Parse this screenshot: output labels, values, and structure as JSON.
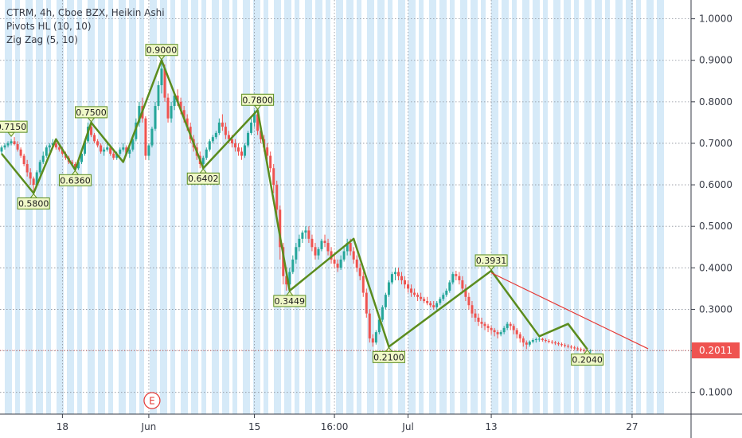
{
  "legend": {
    "main": "CTRM, 4h, Cboe BZX, Heikin Ashi",
    "pivots": "Pivots HL (10, 10)",
    "zigzag": "Zig Zag (5, 10)"
  },
  "colors": {
    "background": "#ffffff",
    "session_shade": "#d6eaf8",
    "up_candle": "#26a69a",
    "down_candle": "#ef5350",
    "zigzag": "#5b8c1e",
    "trendline": "#e53935",
    "pivot_label_bg": "#f0f8c8",
    "pivot_label_border": "#5b8c1e",
    "price_label_bg": "#ef5350",
    "earnings_marker": "#e53935"
  },
  "price_scale": {
    "ticks": [
      "1.0000",
      "0.9000",
      "0.8000",
      "0.7000",
      "0.6000",
      "0.5000",
      "0.4000",
      "0.3000",
      "0.2000",
      "0.1000"
    ],
    "last_price": "0.2011"
  },
  "earnings_marker": {
    "letter": "E",
    "at_time_index": 47
  },
  "chart_data": {
    "type": "candlestick",
    "chart_style": "Heikin Ashi",
    "y_axis": {
      "min": 0.05,
      "max": 1.05,
      "ticks": [
        0.1,
        0.2,
        0.3,
        0.4,
        0.5,
        0.6,
        0.7,
        0.8,
        0.9,
        1.0
      ]
    },
    "x_axis": {
      "tick_labels": [
        {
          "label": "18",
          "index": 19
        },
        {
          "label": "Jun",
          "index": 46
        },
        {
          "label": "15",
          "index": 79
        },
        {
          "label": "16:00",
          "index": 104
        },
        {
          "label": "Jul",
          "index": 127
        },
        {
          "label": "13",
          "index": 153
        },
        {
          "label": "27",
          "index": 197
        }
      ],
      "bar_count": 203
    },
    "candles_ohlc": [
      [
        0.68,
        0.695,
        0.675,
        0.69
      ],
      [
        0.69,
        0.7,
        0.685,
        0.695
      ],
      [
        0.695,
        0.705,
        0.69,
        0.7
      ],
      [
        0.7,
        0.71,
        0.695,
        0.705
      ],
      [
        0.705,
        0.715,
        0.695,
        0.698
      ],
      [
        0.698,
        0.705,
        0.68,
        0.685
      ],
      [
        0.685,
        0.69,
        0.665,
        0.67
      ],
      [
        0.67,
        0.675,
        0.645,
        0.65
      ],
      [
        0.65,
        0.66,
        0.62,
        0.63
      ],
      [
        0.63,
        0.64,
        0.6,
        0.615
      ],
      [
        0.615,
        0.62,
        0.58,
        0.6
      ],
      [
        0.6,
        0.635,
        0.6,
        0.63
      ],
      [
        0.63,
        0.66,
        0.625,
        0.655
      ],
      [
        0.655,
        0.68,
        0.65,
        0.67
      ],
      [
        0.67,
        0.695,
        0.665,
        0.69
      ],
      [
        0.69,
        0.7,
        0.68,
        0.695
      ],
      [
        0.695,
        0.71,
        0.69,
        0.7
      ],
      [
        0.7,
        0.705,
        0.685,
        0.69
      ],
      [
        0.69,
        0.7,
        0.68,
        0.685
      ],
      [
        0.685,
        0.69,
        0.67,
        0.675
      ],
      [
        0.675,
        0.68,
        0.66,
        0.665
      ],
      [
        0.665,
        0.67,
        0.65,
        0.655
      ],
      [
        0.655,
        0.66,
        0.645,
        0.65
      ],
      [
        0.65,
        0.655,
        0.636,
        0.64
      ],
      [
        0.64,
        0.66,
        0.636,
        0.655
      ],
      [
        0.655,
        0.68,
        0.65,
        0.675
      ],
      [
        0.675,
        0.71,
        0.67,
        0.705
      ],
      [
        0.705,
        0.75,
        0.7,
        0.74
      ],
      [
        0.74,
        0.745,
        0.715,
        0.72
      ],
      [
        0.72,
        0.725,
        0.7,
        0.705
      ],
      [
        0.705,
        0.71,
        0.69,
        0.695
      ],
      [
        0.695,
        0.7,
        0.675,
        0.68
      ],
      [
        0.68,
        0.69,
        0.67,
        0.685
      ],
      [
        0.685,
        0.7,
        0.68,
        0.69
      ],
      [
        0.69,
        0.695,
        0.67,
        0.675
      ],
      [
        0.675,
        0.68,
        0.66,
        0.665
      ],
      [
        0.665,
        0.68,
        0.66,
        0.675
      ],
      [
        0.675,
        0.69,
        0.67,
        0.685
      ],
      [
        0.685,
        0.7,
        0.68,
        0.69
      ],
      [
        0.69,
        0.695,
        0.67,
        0.675
      ],
      [
        0.675,
        0.69,
        0.665,
        0.685
      ],
      [
        0.685,
        0.72,
        0.68,
        0.71
      ],
      [
        0.71,
        0.76,
        0.705,
        0.75
      ],
      [
        0.75,
        0.8,
        0.74,
        0.79
      ],
      [
        0.79,
        0.81,
        0.75,
        0.76
      ],
      [
        0.76,
        0.765,
        0.66,
        0.67
      ],
      [
        0.67,
        0.7,
        0.66,
        0.695
      ],
      [
        0.695,
        0.74,
        0.69,
        0.735
      ],
      [
        0.735,
        0.8,
        0.73,
        0.79
      ],
      [
        0.79,
        0.85,
        0.78,
        0.84
      ],
      [
        0.84,
        0.9,
        0.82,
        0.88
      ],
      [
        0.88,
        0.89,
        0.8,
        0.81
      ],
      [
        0.81,
        0.82,
        0.75,
        0.76
      ],
      [
        0.76,
        0.8,
        0.75,
        0.79
      ],
      [
        0.79,
        0.82,
        0.78,
        0.815
      ],
      [
        0.815,
        0.83,
        0.79,
        0.8
      ],
      [
        0.8,
        0.81,
        0.77,
        0.78
      ],
      [
        0.78,
        0.79,
        0.75,
        0.76
      ],
      [
        0.76,
        0.77,
        0.73,
        0.74
      ],
      [
        0.74,
        0.75,
        0.7,
        0.71
      ],
      [
        0.71,
        0.72,
        0.68,
        0.69
      ],
      [
        0.69,
        0.7,
        0.66,
        0.67
      ],
      [
        0.67,
        0.68,
        0.64,
        0.65
      ],
      [
        0.65,
        0.67,
        0.64,
        0.665
      ],
      [
        0.665,
        0.69,
        0.66,
        0.685
      ],
      [
        0.685,
        0.71,
        0.68,
        0.705
      ],
      [
        0.705,
        0.72,
        0.7,
        0.715
      ],
      [
        0.715,
        0.73,
        0.71,
        0.725
      ],
      [
        0.725,
        0.76,
        0.72,
        0.75
      ],
      [
        0.75,
        0.77,
        0.73,
        0.74
      ],
      [
        0.74,
        0.75,
        0.71,
        0.72
      ],
      [
        0.72,
        0.73,
        0.7,
        0.71
      ],
      [
        0.71,
        0.72,
        0.69,
        0.7
      ],
      [
        0.7,
        0.71,
        0.68,
        0.69
      ],
      [
        0.69,
        0.7,
        0.67,
        0.68
      ],
      [
        0.68,
        0.69,
        0.66,
        0.67
      ],
      [
        0.67,
        0.7,
        0.665,
        0.695
      ],
      [
        0.695,
        0.73,
        0.69,
        0.725
      ],
      [
        0.725,
        0.76,
        0.72,
        0.75
      ],
      [
        0.75,
        0.78,
        0.74,
        0.77
      ],
      [
        0.77,
        0.78,
        0.72,
        0.73
      ],
      [
        0.73,
        0.74,
        0.7,
        0.71
      ],
      [
        0.71,
        0.72,
        0.68,
        0.69
      ],
      [
        0.69,
        0.7,
        0.66,
        0.67
      ],
      [
        0.67,
        0.68,
        0.63,
        0.64
      ],
      [
        0.64,
        0.65,
        0.58,
        0.6
      ],
      [
        0.6,
        0.61,
        0.52,
        0.54
      ],
      [
        0.54,
        0.55,
        0.42,
        0.45
      ],
      [
        0.45,
        0.46,
        0.36,
        0.38
      ],
      [
        0.38,
        0.4,
        0.345,
        0.36
      ],
      [
        0.36,
        0.4,
        0.355,
        0.39
      ],
      [
        0.39,
        0.43,
        0.385,
        0.42
      ],
      [
        0.42,
        0.46,
        0.41,
        0.45
      ],
      [
        0.45,
        0.48,
        0.44,
        0.47
      ],
      [
        0.47,
        0.49,
        0.46,
        0.485
      ],
      [
        0.485,
        0.5,
        0.47,
        0.49
      ],
      [
        0.49,
        0.5,
        0.46,
        0.47
      ],
      [
        0.47,
        0.48,
        0.44,
        0.45
      ],
      [
        0.45,
        0.46,
        0.42,
        0.43
      ],
      [
        0.43,
        0.45,
        0.42,
        0.445
      ],
      [
        0.445,
        0.47,
        0.44,
        0.465
      ],
      [
        0.465,
        0.48,
        0.45,
        0.46
      ],
      [
        0.46,
        0.47,
        0.43,
        0.44
      ],
      [
        0.44,
        0.45,
        0.41,
        0.42
      ],
      [
        0.42,
        0.43,
        0.4,
        0.41
      ],
      [
        0.41,
        0.42,
        0.39,
        0.4
      ],
      [
        0.4,
        0.43,
        0.395,
        0.42
      ],
      [
        0.42,
        0.45,
        0.415,
        0.44
      ],
      [
        0.44,
        0.47,
        0.43,
        0.46
      ],
      [
        0.46,
        0.47,
        0.43,
        0.44
      ],
      [
        0.44,
        0.45,
        0.41,
        0.42
      ],
      [
        0.42,
        0.43,
        0.39,
        0.4
      ],
      [
        0.4,
        0.41,
        0.37,
        0.38
      ],
      [
        0.38,
        0.39,
        0.33,
        0.34
      ],
      [
        0.34,
        0.35,
        0.28,
        0.29
      ],
      [
        0.29,
        0.3,
        0.22,
        0.23
      ],
      [
        0.23,
        0.24,
        0.21,
        0.22
      ],
      [
        0.22,
        0.25,
        0.215,
        0.245
      ],
      [
        0.245,
        0.28,
        0.24,
        0.275
      ],
      [
        0.275,
        0.31,
        0.27,
        0.305
      ],
      [
        0.305,
        0.34,
        0.3,
        0.335
      ],
      [
        0.335,
        0.37,
        0.33,
        0.365
      ],
      [
        0.365,
        0.39,
        0.36,
        0.385
      ],
      [
        0.385,
        0.4,
        0.37,
        0.39
      ],
      [
        0.39,
        0.4,
        0.37,
        0.38
      ],
      [
        0.38,
        0.39,
        0.36,
        0.37
      ],
      [
        0.37,
        0.38,
        0.35,
        0.36
      ],
      [
        0.36,
        0.37,
        0.34,
        0.35
      ],
      [
        0.35,
        0.36,
        0.33,
        0.34
      ],
      [
        0.34,
        0.35,
        0.33,
        0.335
      ],
      [
        0.335,
        0.34,
        0.32,
        0.33
      ],
      [
        0.33,
        0.34,
        0.32,
        0.325
      ],
      [
        0.325,
        0.33,
        0.315,
        0.32
      ],
      [
        0.32,
        0.33,
        0.31,
        0.315
      ],
      [
        0.315,
        0.32,
        0.305,
        0.31
      ],
      [
        0.31,
        0.32,
        0.3,
        0.305
      ],
      [
        0.305,
        0.32,
        0.3,
        0.315
      ],
      [
        0.315,
        0.33,
        0.31,
        0.325
      ],
      [
        0.325,
        0.34,
        0.32,
        0.335
      ],
      [
        0.335,
        0.35,
        0.33,
        0.345
      ],
      [
        0.345,
        0.37,
        0.34,
        0.365
      ],
      [
        0.365,
        0.39,
        0.36,
        0.385
      ],
      [
        0.385,
        0.393,
        0.37,
        0.38
      ],
      [
        0.38,
        0.39,
        0.36,
        0.37
      ],
      [
        0.37,
        0.38,
        0.34,
        0.35
      ],
      [
        0.35,
        0.36,
        0.32,
        0.33
      ],
      [
        0.33,
        0.34,
        0.3,
        0.31
      ],
      [
        0.31,
        0.32,
        0.28,
        0.29
      ],
      [
        0.29,
        0.3,
        0.27,
        0.28
      ],
      [
        0.28,
        0.29,
        0.26,
        0.27
      ],
      [
        0.27,
        0.28,
        0.255,
        0.265
      ],
      [
        0.265,
        0.27,
        0.25,
        0.26
      ],
      [
        0.26,
        0.265,
        0.245,
        0.255
      ],
      [
        0.255,
        0.26,
        0.24,
        0.25
      ],
      [
        0.25,
        0.255,
        0.235,
        0.245
      ],
      [
        0.245,
        0.25,
        0.23,
        0.24
      ],
      [
        0.24,
        0.25,
        0.235,
        0.245
      ],
      [
        0.245,
        0.26,
        0.24,
        0.255
      ],
      [
        0.255,
        0.27,
        0.25,
        0.265
      ],
      [
        0.265,
        0.27,
        0.25,
        0.26
      ],
      [
        0.26,
        0.265,
        0.24,
        0.25
      ],
      [
        0.25,
        0.255,
        0.23,
        0.24
      ],
      [
        0.24,
        0.245,
        0.22,
        0.23
      ],
      [
        0.23,
        0.235,
        0.21,
        0.22
      ],
      [
        0.22,
        0.225,
        0.204,
        0.215
      ],
      [
        0.215,
        0.225,
        0.21,
        0.222
      ],
      [
        0.222,
        0.23,
        0.218,
        0.226
      ],
      [
        0.226,
        0.232,
        0.22,
        0.228
      ],
      [
        0.228,
        0.233,
        0.222,
        0.229
      ],
      [
        0.229,
        0.232,
        0.222,
        0.226
      ],
      [
        0.226,
        0.23,
        0.22,
        0.224
      ],
      [
        0.224,
        0.228,
        0.218,
        0.222
      ],
      [
        0.222,
        0.226,
        0.216,
        0.22
      ],
      [
        0.22,
        0.224,
        0.214,
        0.218
      ],
      [
        0.218,
        0.222,
        0.212,
        0.216
      ],
      [
        0.216,
        0.22,
        0.21,
        0.214
      ],
      [
        0.214,
        0.218,
        0.208,
        0.212
      ],
      [
        0.212,
        0.216,
        0.206,
        0.21
      ],
      [
        0.21,
        0.214,
        0.204,
        0.208
      ],
      [
        0.208,
        0.212,
        0.202,
        0.206
      ],
      [
        0.206,
        0.21,
        0.2,
        0.204
      ],
      [
        0.204,
        0.208,
        0.198,
        0.202
      ],
      [
        0.202,
        0.206,
        0.196,
        0.2
      ],
      [
        0.2,
        0.205,
        0.195,
        0.199
      ],
      [
        0.199,
        0.204,
        0.195,
        0.2011
      ]
    ],
    "zigzag": [
      {
        "index": 0,
        "price": 0.675
      },
      {
        "index": 10,
        "price": 0.58
      },
      {
        "index": 17,
        "price": 0.71
      },
      {
        "index": 23,
        "price": 0.636
      },
      {
        "index": 28,
        "price": 0.75
      },
      {
        "index": 38,
        "price": 0.655
      },
      {
        "index": 50,
        "price": 0.9
      },
      {
        "index": 63,
        "price": 0.64
      },
      {
        "index": 80,
        "price": 0.78
      },
      {
        "index": 90,
        "price": 0.345
      },
      {
        "index": 110,
        "price": 0.47
      },
      {
        "index": 121,
        "price": 0.21
      },
      {
        "index": 153,
        "price": 0.393
      },
      {
        "index": 168,
        "price": 0.235
      },
      {
        "index": 177,
        "price": 0.265
      },
      {
        "index": 183,
        "price": 0.204
      }
    ],
    "pivot_labels": [
      {
        "text": "0.7150",
        "index": 3,
        "price": 0.715,
        "position": "above"
      },
      {
        "text": "0.5800",
        "index": 10,
        "price": 0.58,
        "position": "below"
      },
      {
        "text": "0.6360",
        "index": 23,
        "price": 0.636,
        "position": "below"
      },
      {
        "text": "0.7500",
        "index": 28,
        "price": 0.75,
        "position": "above"
      },
      {
        "text": "0.9000",
        "index": 50,
        "price": 0.9,
        "position": "above"
      },
      {
        "text": "0.6402",
        "index": 63,
        "price": 0.64,
        "position": "below"
      },
      {
        "text": "0.7800",
        "index": 80,
        "price": 0.78,
        "position": "above"
      },
      {
        "text": "0.3449",
        "index": 90,
        "price": 0.345,
        "position": "below"
      },
      {
        "text": "0.2100",
        "index": 121,
        "price": 0.21,
        "position": "below"
      },
      {
        "text": "0.3931",
        "index": 153,
        "price": 0.393,
        "position": "above"
      },
      {
        "text": "0.2040",
        "index": 183,
        "price": 0.204,
        "position": "below"
      }
    ],
    "trendline": [
      {
        "index": 153,
        "price": 0.388
      },
      {
        "index": 202,
        "price": 0.205
      }
    ]
  }
}
